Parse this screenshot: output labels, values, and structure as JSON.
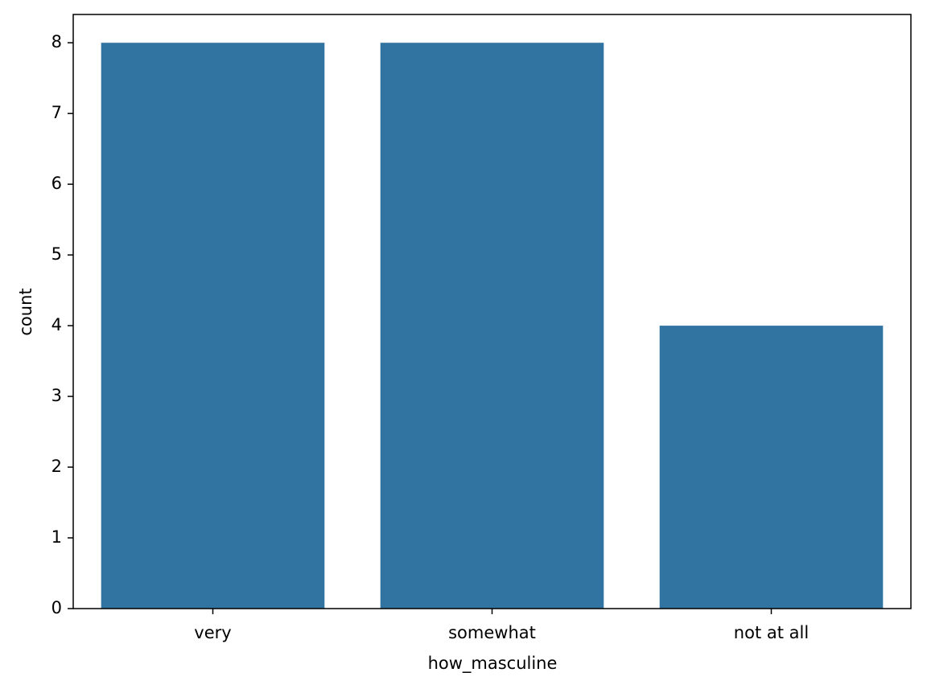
{
  "chart_data": {
    "type": "bar",
    "x_label": "how_masculine",
    "y_label": "count",
    "categories": [
      "very",
      "somewhat",
      "not at all"
    ],
    "values": [
      8,
      8,
      4
    ],
    "color": "#3274a1",
    "ylim": [
      0,
      8.4
    ],
    "yticks": [
      0,
      1,
      2,
      3,
      4,
      5,
      6,
      7,
      8
    ],
    "grid": false
  }
}
